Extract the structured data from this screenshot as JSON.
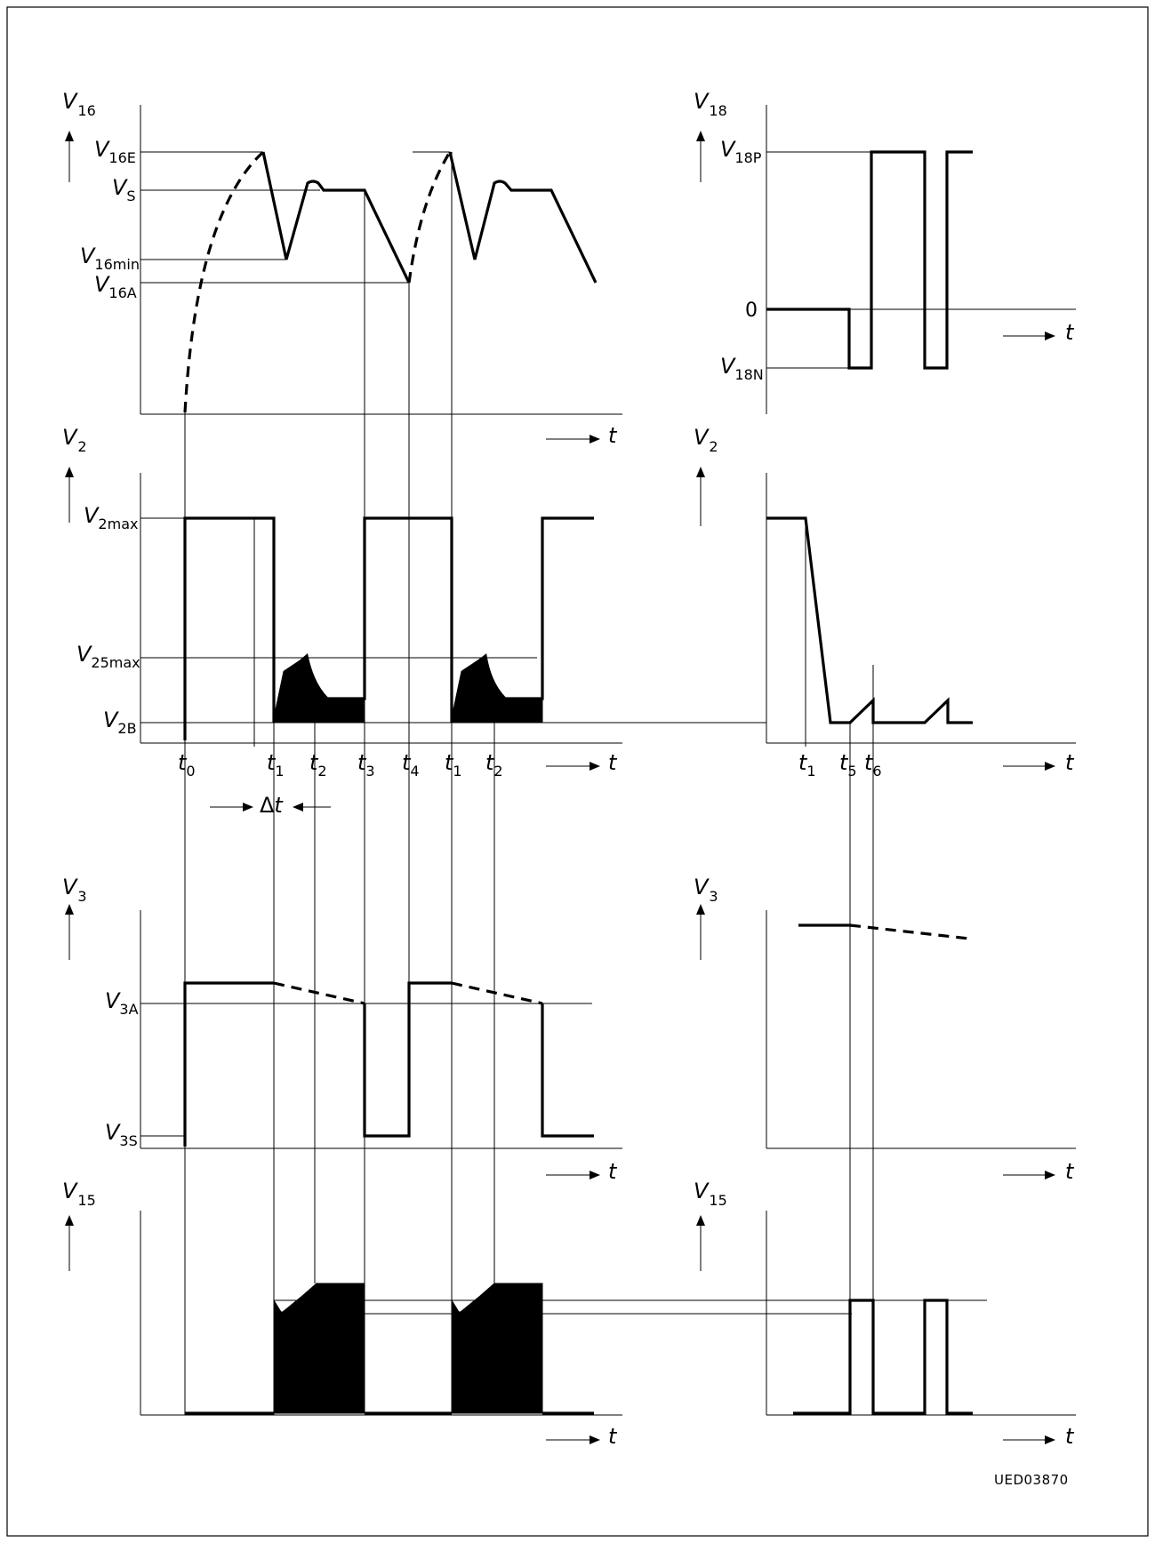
{
  "figure_code": "UED03870",
  "time_axis": {
    "main": "t",
    "sub": ""
  },
  "left_column": {
    "v16_panel": {
      "axis": {
        "main": "V",
        "sub": "16"
      },
      "levels": [
        {
          "main": "V",
          "sub": "16E"
        },
        {
          "main": "V",
          "sub": "S"
        },
        {
          "main": "V",
          "sub": "16min"
        },
        {
          "main": "V",
          "sub": "16A"
        }
      ]
    },
    "v2_panel": {
      "axis": {
        "main": "V",
        "sub": "2"
      },
      "levels": [
        {
          "main": "V",
          "sub": "2max"
        },
        {
          "main": "V",
          "sub": "25max"
        },
        {
          "main": "V",
          "sub": "2B"
        }
      ],
      "time_marks": [
        {
          "main": "t",
          "sub": "0"
        },
        {
          "main": "t",
          "sub": "1"
        },
        {
          "main": "t",
          "sub": "2"
        },
        {
          "main": "t",
          "sub": "3"
        },
        {
          "main": "t",
          "sub": "4"
        },
        {
          "main": "t",
          "sub": "1"
        },
        {
          "main": "t",
          "sub": "2"
        }
      ],
      "delta": {
        "sym": "Δ",
        "main": "t"
      }
    },
    "v3_panel": {
      "axis": {
        "main": "V",
        "sub": "3"
      },
      "levels": [
        {
          "main": "V",
          "sub": "3A"
        },
        {
          "main": "V",
          "sub": "3S"
        }
      ]
    },
    "v15_panel": {
      "axis": {
        "main": "V",
        "sub": "15"
      }
    }
  },
  "right_column": {
    "v18_panel": {
      "axis": {
        "main": "V",
        "sub": "18"
      },
      "levels": [
        {
          "main": "V",
          "sub": "18P"
        },
        {
          "main": "0",
          "sub": ""
        },
        {
          "main": "V",
          "sub": "18N"
        }
      ]
    },
    "v2_panel": {
      "axis": {
        "main": "V",
        "sub": "2"
      },
      "time_marks": [
        {
          "main": "t",
          "sub": "1"
        },
        {
          "main": "t",
          "sub": "5"
        },
        {
          "main": "t",
          "sub": "6"
        }
      ]
    },
    "v3_panel": {
      "axis": {
        "main": "V",
        "sub": "3"
      }
    },
    "v15_panel": {
      "axis": {
        "main": "V",
        "sub": "15"
      }
    }
  }
}
